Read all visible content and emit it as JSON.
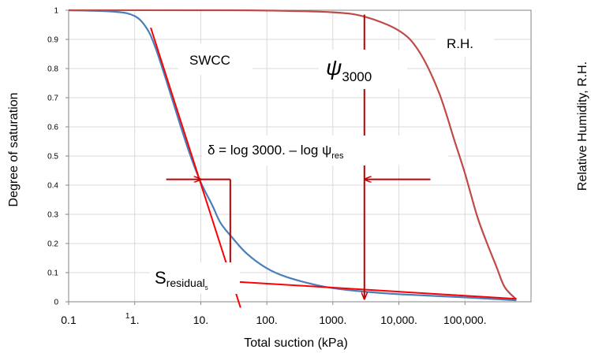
{
  "chart_data": {
    "type": "line",
    "xlabel": "Total suction (kPa)",
    "ylabel": "Degree of saturation",
    "ylabel_right": "Relative Humidity, R.H.",
    "x_scale": "log",
    "xlim": [
      0.1,
      1000000
    ],
    "ylim": [
      0,
      1
    ],
    "grid": true,
    "x_tick_labels": [
      {
        "x": 0.1,
        "label": "0.1"
      },
      {
        "x": 1,
        "label": "1."
      },
      {
        "x": 10,
        "label": "10."
      },
      {
        "x": 100,
        "label": "100."
      },
      {
        "x": 1000,
        "label": "1000."
      },
      {
        "x": 10000,
        "label": "10,000."
      },
      {
        "x": 100000,
        "label": "100,000."
      }
    ],
    "x_tick_stray": "1",
    "y_ticks": [
      0,
      0.1,
      0.2,
      0.3,
      0.4,
      0.5,
      0.6,
      0.7,
      0.8,
      0.9,
      1
    ],
    "y_tick_labels": [
      "0",
      "0.1",
      "0.2",
      "0.3",
      "0.4",
      "0.5",
      "0.6",
      "0.7",
      "0.8",
      "0.9",
      "1"
    ],
    "series": [
      {
        "name": "SWCC",
        "color": "#4a7ebb",
        "points": [
          [
            0.1,
            1.0
          ],
          [
            0.5,
            0.995
          ],
          [
            1,
            0.98
          ],
          [
            1.5,
            0.94
          ],
          [
            2,
            0.88
          ],
          [
            3,
            0.76
          ],
          [
            5,
            0.6
          ],
          [
            7,
            0.5
          ],
          [
            10,
            0.41
          ],
          [
            15,
            0.33
          ],
          [
            20,
            0.27
          ],
          [
            30,
            0.22
          ],
          [
            50,
            0.165
          ],
          [
            100,
            0.115
          ],
          [
            200,
            0.085
          ],
          [
            500,
            0.06
          ],
          [
            1000,
            0.047
          ],
          [
            3000,
            0.035
          ],
          [
            10000,
            0.026
          ],
          [
            100000,
            0.015
          ],
          [
            600000,
            0.005
          ]
        ]
      },
      {
        "name": "R.H.",
        "color": "#be4b48",
        "points": [
          [
            0.1,
            1.0
          ],
          [
            10,
            1.0
          ],
          [
            100,
            0.999
          ],
          [
            1000,
            0.993
          ],
          [
            3000,
            0.978
          ],
          [
            10000,
            0.93
          ],
          [
            20000,
            0.86
          ],
          [
            40000,
            0.72
          ],
          [
            70000,
            0.55
          ],
          [
            100000,
            0.44
          ],
          [
            150000,
            0.3
          ],
          [
            200000,
            0.22
          ],
          [
            300000,
            0.12
          ],
          [
            400000,
            0.05
          ],
          [
            600000,
            0.008
          ]
        ]
      }
    ],
    "red_lines": {
      "color": "#ff0000",
      "steep": [
        [
          1.75,
          0.94
        ],
        [
          40,
          -0.02
        ]
      ],
      "residual": [
        [
          28,
          0.07
        ],
        [
          600000,
          0.01
        ]
      ]
    },
    "dark_red_lines": {
      "color": "#c00000",
      "psi3000_vertical": {
        "x": 3000,
        "y_range": [
          0.01,
          0.985
        ]
      },
      "residual_vertical": {
        "x": 28,
        "y_range": [
          0.08,
          0.42
        ]
      },
      "left_arrow": {
        "y": 0.42,
        "x_from": 3,
        "x_to": 10
      },
      "right_arrow": {
        "y": 0.42,
        "x_from": 30000,
        "x_to": 3000
      },
      "connector": {
        "y": 0.42,
        "x_from": 10,
        "x_to": 28
      }
    },
    "annotations": {
      "swcc_label": "SWCC",
      "rh_label": "R.H.",
      "psi_symbol": "ψ",
      "psi_subscript": "3000",
      "delta_main": "δ = log 3000. – log ψ",
      "delta_subscript": "res",
      "s_main": "S",
      "s_subscript": "residual",
      "s_stray": "5"
    }
  }
}
